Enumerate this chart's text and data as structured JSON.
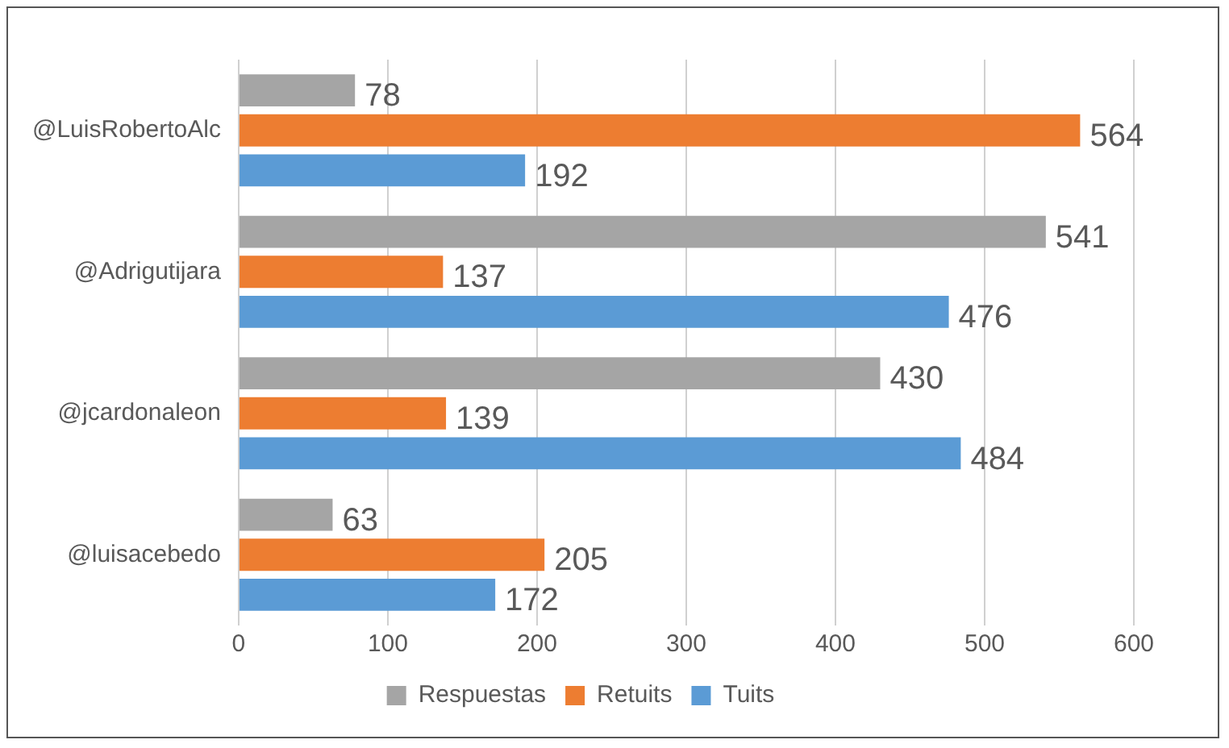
{
  "chart_data": {
    "type": "bar",
    "orientation": "horizontal",
    "categories": [
      "@LuisRobertoAlc",
      "@Adrigutijara",
      "@jcardonaleon",
      "@luisacebedo"
    ],
    "series": [
      {
        "name": "Respuestas",
        "color": "#a5a5a5",
        "values": [
          78,
          541,
          430,
          63
        ]
      },
      {
        "name": "Retuits",
        "color": "#ed7d31",
        "values": [
          564,
          137,
          139,
          205
        ]
      },
      {
        "name": "Tuits",
        "color": "#5b9bd5",
        "values": [
          192,
          476,
          484,
          172
        ]
      }
    ],
    "xlim": [
      0,
      600
    ],
    "xticks": [
      0,
      100,
      200,
      300,
      400,
      500,
      600
    ],
    "grid": "x",
    "legend": "bottom",
    "data_labels": true
  }
}
